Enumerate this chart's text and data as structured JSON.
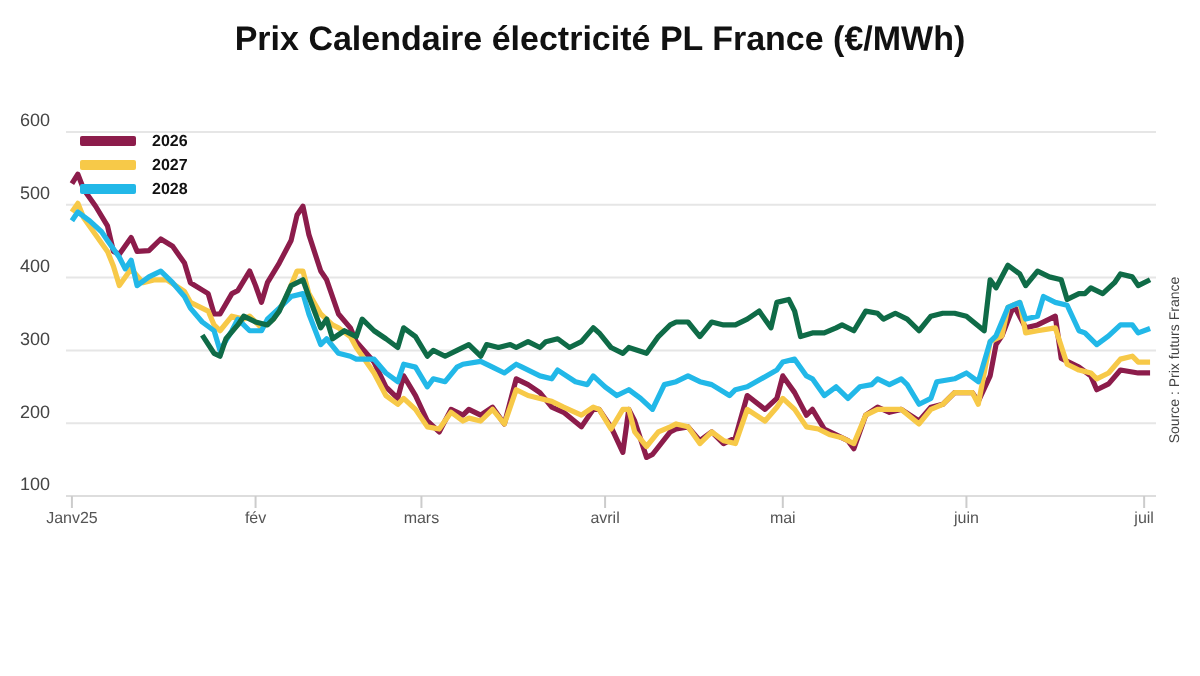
{
  "chart_data": {
    "type": "line",
    "title": "Prix Calendaire électricité PL France (€/MWh)",
    "annotations": [
      "Source : Prix futurs France"
    ],
    "xlim": [
      "2024-12-31",
      "2025-07-03"
    ],
    "xticks": [
      {
        "value": "2025-01-01",
        "label": "Janv25"
      },
      {
        "value": "2025-02-01",
        "label": "fév"
      },
      {
        "value": "2025-03-01",
        "label": "mars"
      },
      {
        "value": "2025-04-01",
        "label": "avril"
      },
      {
        "value": "2025-05-01",
        "label": "mai"
      },
      {
        "value": "2025-06-01",
        "label": "juin"
      },
      {
        "value": "2025-07-01",
        "label": "juil"
      }
    ],
    "ylim": [
      100,
      600
    ],
    "yticks": [
      100,
      200,
      300,
      400,
      500,
      600
    ],
    "grid": "y",
    "legend": "top left",
    "marker": "none",
    "line_style": "solid",
    "series": [
      {
        "name": "2026",
        "color": "#8c1c4b",
        "x": [
          "2025-01-01",
          "2025-01-02",
          "2025-01-03",
          "2025-01-05",
          "2025-01-07",
          "2025-01-08",
          "2025-01-09",
          "2025-01-11",
          "2025-01-12",
          "2025-01-14",
          "2025-01-16",
          "2025-01-18",
          "2025-01-20",
          "2025-01-21",
          "2025-01-24",
          "2025-01-25",
          "2025-01-26",
          "2025-01-28",
          "2025-01-29",
          "2025-01-31",
          "2025-02-01",
          "2025-02-02",
          "2025-02-03",
          "2025-02-05",
          "2025-02-07",
          "2025-02-08",
          "2025-02-09",
          "2025-02-10",
          "2025-02-12",
          "2025-02-13",
          "2025-02-15",
          "2025-02-17",
          "2025-02-18",
          "2025-02-21",
          "2025-02-23",
          "2025-02-25",
          "2025-02-26",
          "2025-02-28",
          "2025-03-02",
          "2025-03-04",
          "2025-03-06",
          "2025-03-08",
          "2025-03-09",
          "2025-03-11",
          "2025-03-13",
          "2025-03-15",
          "2025-03-17",
          "2025-03-19",
          "2025-03-21",
          "2025-03-23",
          "2025-03-25",
          "2025-03-28",
          "2025-03-30",
          "2025-03-31",
          "2025-04-02",
          "2025-04-04",
          "2025-04-05",
          "2025-04-06",
          "2025-04-08",
          "2025-04-09",
          "2025-04-12",
          "2025-04-13",
          "2025-04-15",
          "2025-04-17",
          "2025-04-19",
          "2025-04-21",
          "2025-04-23",
          "2025-04-25",
          "2025-04-28",
          "2025-04-30",
          "2025-05-01",
          "2025-05-03",
          "2025-05-05",
          "2025-05-06",
          "2025-05-08",
          "2025-05-10",
          "2025-05-12",
          "2025-05-13",
          "2025-05-15",
          "2025-05-17",
          "2025-05-19",
          "2025-05-21",
          "2025-05-24",
          "2025-05-26",
          "2025-05-28",
          "2025-05-30",
          "2025-06-02",
          "2025-06-03",
          "2025-06-05",
          "2025-06-06",
          "2025-06-07",
          "2025-06-09",
          "2025-06-11",
          "2025-06-13",
          "2025-06-15",
          "2025-06-16",
          "2025-06-17",
          "2025-06-20",
          "2025-06-22",
          "2025-06-23",
          "2025-06-25",
          "2025-06-27",
          "2025-06-30",
          "2025-07-02"
        ],
        "values": [
          529,
          542,
          521,
          498,
          471,
          436,
          432,
          455,
          436,
          437,
          453,
          443,
          420,
          393,
          378,
          350,
          350,
          378,
          382,
          409,
          389,
          366,
          393,
          420,
          451,
          486,
          498,
          459,
          409,
          397,
          350,
          331,
          312,
          284,
          250,
          234,
          265,
          238,
          203,
          188,
          219,
          211,
          219,
          211,
          222,
          199,
          261,
          253,
          242,
          222,
          215,
          195,
          219,
          219,
          195,
          160,
          219,
          203,
          153,
          157,
          188,
          192,
          195,
          176,
          188,
          172,
          180,
          238,
          219,
          234,
          265,
          242,
          211,
          219,
          192,
          184,
          176,
          165,
          211,
          222,
          215,
          219,
          203,
          222,
          226,
          242,
          242,
          230,
          265,
          308,
          320,
          362,
          331,
          335,
          343,
          347,
          289,
          277,
          265,
          246,
          254,
          273,
          269,
          269
        ]
      },
      {
        "name": "2027",
        "color": "#f7c948",
        "x": [
          "2025-01-01",
          "2025-01-02",
          "2025-01-03",
          "2025-01-05",
          "2025-01-07",
          "2025-01-08",
          "2025-01-09",
          "2025-01-11",
          "2025-01-13",
          "2025-01-15",
          "2025-01-17",
          "2025-01-20",
          "2025-01-21",
          "2025-01-24",
          "2025-01-25",
          "2025-01-26",
          "2025-01-28",
          "2025-01-30",
          "2025-01-31",
          "2025-02-02",
          "2025-02-04",
          "2025-02-06",
          "2025-02-08",
          "2025-02-09",
          "2025-02-10",
          "2025-02-12",
          "2025-02-14",
          "2025-02-15",
          "2025-02-17",
          "2025-02-18",
          "2025-02-21",
          "2025-02-23",
          "2025-02-25",
          "2025-02-26",
          "2025-02-28",
          "2025-03-02",
          "2025-03-04",
          "2025-03-06",
          "2025-03-08",
          "2025-03-09",
          "2025-03-11",
          "2025-03-13",
          "2025-03-15",
          "2025-03-17",
          "2025-03-19",
          "2025-03-21",
          "2025-03-23",
          "2025-03-25",
          "2025-03-28",
          "2025-03-30",
          "2025-03-31",
          "2025-04-02",
          "2025-04-04",
          "2025-04-05",
          "2025-04-06",
          "2025-04-08",
          "2025-04-10",
          "2025-04-12",
          "2025-04-13",
          "2025-04-15",
          "2025-04-17",
          "2025-04-19",
          "2025-04-21",
          "2025-04-23",
          "2025-04-25",
          "2025-04-28",
          "2025-04-30",
          "2025-05-01",
          "2025-05-03",
          "2025-05-05",
          "2025-05-07",
          "2025-05-09",
          "2025-05-11",
          "2025-05-13",
          "2025-05-15",
          "2025-05-17",
          "2025-05-19",
          "2025-05-21",
          "2025-05-24",
          "2025-05-26",
          "2025-05-28",
          "2025-05-30",
          "2025-06-02",
          "2025-06-03",
          "2025-06-05",
          "2025-06-07",
          "2025-06-08",
          "2025-06-10",
          "2025-06-11",
          "2025-06-13",
          "2025-06-16",
          "2025-06-18",
          "2025-06-20",
          "2025-06-22",
          "2025-06-23",
          "2025-06-25",
          "2025-06-27",
          "2025-06-29",
          "2025-06-30",
          "2025-07-02"
        ],
        "values": [
          490,
          502,
          482,
          459,
          436,
          416,
          389,
          412,
          393,
          397,
          397,
          381,
          366,
          354,
          335,
          327,
          347,
          343,
          347,
          331,
          343,
          370,
          409,
          409,
          378,
          350,
          335,
          331,
          319,
          304,
          269,
          238,
          226,
          234,
          219,
          195,
          192,
          215,
          203,
          207,
          203,
          219,
          199,
          246,
          238,
          234,
          230,
          222,
          211,
          222,
          219,
          192,
          219,
          219,
          188,
          168,
          188,
          195,
          199,
          195,
          172,
          188,
          176,
          172,
          219,
          203,
          222,
          234,
          219,
          195,
          192,
          184,
          180,
          172,
          211,
          219,
          219,
          219,
          199,
          219,
          226,
          242,
          242,
          226,
          312,
          320,
          359,
          366,
          324,
          327,
          331,
          281,
          273,
          269,
          261,
          269,
          288,
          292,
          284,
          284
        ]
      },
      {
        "name": "2028",
        "color": "#22b8e8",
        "x": [
          "2025-01-01",
          "2025-01-02",
          "2025-01-04",
          "2025-01-06",
          "2025-01-07",
          "2025-01-09",
          "2025-01-10",
          "2025-01-11",
          "2025-01-12",
          "2025-01-14",
          "2025-01-16",
          "2025-01-18",
          "2025-01-20",
          "2025-01-21",
          "2025-01-23",
          "2025-01-25",
          "2025-01-26",
          "2025-01-28",
          "2025-01-29",
          "2025-01-31",
          "2025-02-02",
          "2025-02-03",
          "2025-02-05",
          "2025-02-07",
          "2025-02-09",
          "2025-02-10",
          "2025-02-12",
          "2025-02-13",
          "2025-02-15",
          "2025-02-17",
          "2025-02-18",
          "2025-02-21",
          "2025-02-23",
          "2025-02-25",
          "2025-02-26",
          "2025-02-28",
          "2025-03-02",
          "2025-03-03",
          "2025-03-05",
          "2025-03-07",
          "2025-03-08",
          "2025-03-11",
          "2025-03-13",
          "2025-03-15",
          "2025-03-17",
          "2025-03-18",
          "2025-03-21",
          "2025-03-23",
          "2025-03-24",
          "2025-03-27",
          "2025-03-29",
          "2025-03-30",
          "2025-04-01",
          "2025-04-03",
          "2025-04-05",
          "2025-04-07",
          "2025-04-09",
          "2025-04-11",
          "2025-04-13",
          "2025-04-15",
          "2025-04-17",
          "2025-04-19",
          "2025-04-22",
          "2025-04-23",
          "2025-04-25",
          "2025-04-30",
          "2025-05-01",
          "2025-05-03",
          "2025-05-05",
          "2025-05-06",
          "2025-05-08",
          "2025-05-10",
          "2025-05-12",
          "2025-05-14",
          "2025-05-16",
          "2025-05-17",
          "2025-05-19",
          "2025-05-21",
          "2025-05-22",
          "2025-05-24",
          "2025-05-26",
          "2025-05-27",
          "2025-05-30",
          "2025-06-01",
          "2025-06-03",
          "2025-06-05",
          "2025-06-06",
          "2025-06-08",
          "2025-06-10",
          "2025-06-11",
          "2025-06-13",
          "2025-06-14",
          "2025-06-16",
          "2025-06-18",
          "2025-06-20",
          "2025-06-21",
          "2025-06-23",
          "2025-06-25",
          "2025-06-27",
          "2025-06-29",
          "2025-06-30",
          "2025-07-02"
        ],
        "values": [
          478,
          490,
          478,
          463,
          451,
          428,
          412,
          424,
          389,
          401,
          409,
          393,
          374,
          358,
          339,
          327,
          300,
          327,
          343,
          327,
          327,
          343,
          358,
          374,
          378,
          350,
          308,
          316,
          296,
          292,
          288,
          288,
          269,
          257,
          281,
          277,
          250,
          261,
          257,
          277,
          281,
          285,
          277,
          269,
          281,
          277,
          265,
          261,
          273,
          257,
          253,
          265,
          250,
          238,
          246,
          234,
          219,
          253,
          257,
          265,
          257,
          253,
          238,
          246,
          250,
          273,
          284,
          288,
          265,
          261,
          238,
          250,
          234,
          250,
          253,
          261,
          253,
          261,
          253,
          226,
          234,
          257,
          261,
          269,
          257,
          312,
          320,
          359,
          366,
          343,
          347,
          374,
          366,
          362,
          327,
          324,
          308,
          320,
          335,
          335,
          324,
          330
        ]
      },
      {
        "color": "#0f6b47",
        "x": [
          "2025-01-23",
          "2025-01-25",
          "2025-01-26",
          "2025-01-27",
          "2025-01-29",
          "2025-01-30",
          "2025-02-01",
          "2025-02-03",
          "2025-02-04",
          "2025-02-05",
          "2025-02-07",
          "2025-02-09",
          "2025-02-10",
          "2025-02-12",
          "2025-02-13",
          "2025-02-14",
          "2025-02-16",
          "2025-02-18",
          "2025-02-19",
          "2025-02-21",
          "2025-02-23",
          "2025-02-25",
          "2025-02-26",
          "2025-02-28",
          "2025-03-02",
          "2025-03-03",
          "2025-03-05",
          "2025-03-07",
          "2025-03-09",
          "2025-03-11",
          "2025-03-12",
          "2025-03-14",
          "2025-03-16",
          "2025-03-17",
          "2025-03-19",
          "2025-03-21",
          "2025-03-22",
          "2025-03-24",
          "2025-03-26",
          "2025-03-28",
          "2025-03-30",
          "2025-03-31",
          "2025-04-02",
          "2025-04-04",
          "2025-04-05",
          "2025-04-08",
          "2025-04-10",
          "2025-04-12",
          "2025-04-13",
          "2025-04-15",
          "2025-04-17",
          "2025-04-19",
          "2025-04-21",
          "2025-04-23",
          "2025-04-25",
          "2025-04-27",
          "2025-04-29",
          "2025-04-30",
          "2025-05-02",
          "2025-05-03",
          "2025-05-04",
          "2025-05-06",
          "2025-05-08",
          "2025-05-10",
          "2025-05-11",
          "2025-05-13",
          "2025-05-15",
          "2025-05-17",
          "2025-05-18",
          "2025-05-20",
          "2025-05-22",
          "2025-05-24",
          "2025-05-26",
          "2025-05-28",
          "2025-05-30",
          "2025-06-01",
          "2025-06-04",
          "2025-06-05",
          "2025-06-06",
          "2025-06-08",
          "2025-06-10",
          "2025-06-11",
          "2025-06-13",
          "2025-06-15",
          "2025-06-17",
          "2025-06-18",
          "2025-06-20",
          "2025-06-21",
          "2025-06-22",
          "2025-06-24",
          "2025-06-26",
          "2025-06-27",
          "2025-06-29",
          "2025-06-30",
          "2025-07-02"
        ],
        "values": [
          321,
          296,
          292,
          316,
          335,
          347,
          339,
          335,
          343,
          354,
          389,
          397,
          374,
          331,
          343,
          316,
          327,
          319,
          343,
          327,
          316,
          304,
          331,
          319,
          292,
          300,
          292,
          300,
          308,
          292,
          308,
          304,
          308,
          304,
          312,
          304,
          312,
          316,
          304,
          312,
          331,
          324,
          304,
          296,
          304,
          296,
          319,
          335,
          339,
          339,
          319,
          339,
          335,
          335,
          343,
          354,
          331,
          366,
          370,
          354,
          319,
          324,
          324,
          331,
          335,
          327,
          354,
          351,
          343,
          351,
          343,
          327,
          347,
          351,
          351,
          347,
          327,
          397,
          386,
          417,
          405,
          389,
          409,
          401,
          397,
          370,
          378,
          378,
          386,
          378,
          393,
          405,
          401,
          389,
          397
        ]
      }
    ]
  }
}
